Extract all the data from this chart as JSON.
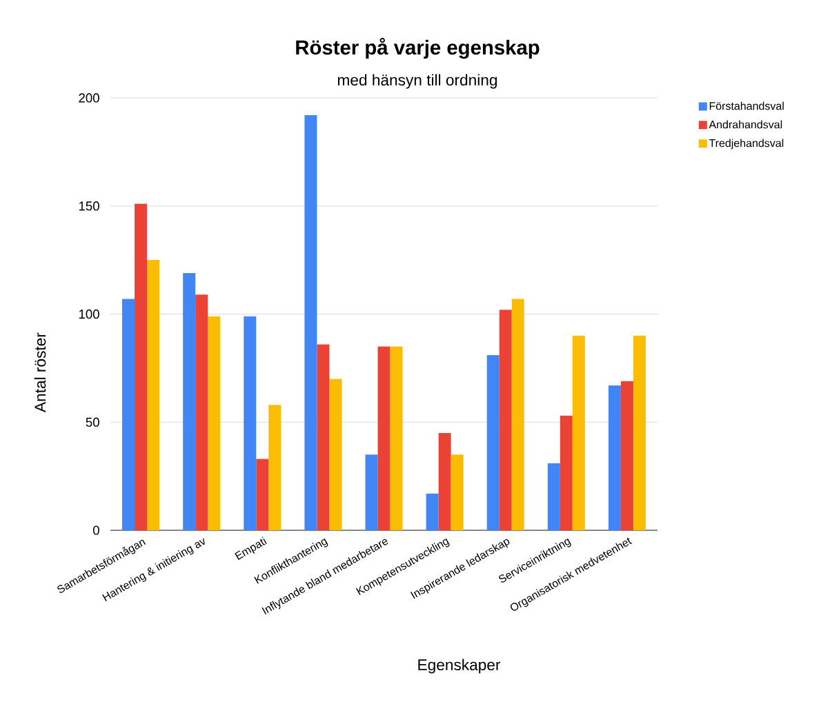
{
  "chart_data": {
    "type": "bar",
    "title": "Röster på varje egenskap",
    "subtitle": "med hänsyn till ordning",
    "xlabel": "Egenskaper",
    "ylabel": "Antal röster",
    "categories": [
      "Samarbetsförmågan",
      "Hantering & initiering av",
      "Empati",
      "Konflikthantering",
      "Inflytande bland medarbetare",
      "Kompetensutveckling",
      "Inspirerande ledarskap",
      "Serviceinriktning",
      "Organisatorisk medvetenhet"
    ],
    "series": [
      {
        "name": "Förstahandsval",
        "color": "#4285f4",
        "values": [
          107,
          119,
          99,
          192,
          35,
          17,
          81,
          31,
          67
        ]
      },
      {
        "name": "Andrahandsval",
        "color": "#ea4335",
        "values": [
          151,
          109,
          33,
          86,
          85,
          45,
          102,
          53,
          69
        ]
      },
      {
        "name": "Tredjehandsval",
        "color": "#fbbc04",
        "values": [
          125,
          99,
          58,
          70,
          85,
          35,
          107,
          90,
          90
        ]
      }
    ],
    "ylim": [
      0,
      200
    ],
    "yticks": [
      0,
      50,
      100,
      150,
      200
    ],
    "grid": "y",
    "legend": "top right"
  }
}
